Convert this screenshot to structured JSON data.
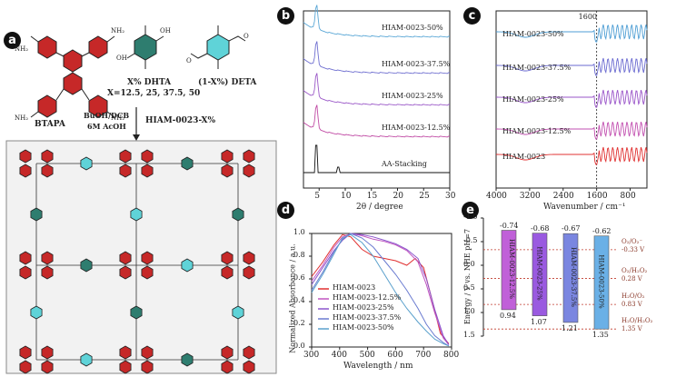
{
  "panel_labels": {
    "a": "a",
    "b": "b",
    "c": "c",
    "d": "d",
    "e": "e"
  },
  "panel_a": {
    "btapa": "BTAPA",
    "dhta": "X% DHTA",
    "deta": "(1-X%) DETA",
    "x_values": "X=12.5, 25, 37.5, 50",
    "cond1": "BuOH/DCB",
    "cond2": "6M AcOH",
    "product": "HIAM-0023-X%",
    "nh2": "NH₂",
    "oh": "OH",
    "o": "O"
  },
  "chart_data": [
    {
      "type": "line",
      "panel": "b",
      "xlabel": "2θ / degree",
      "xlim": [
        2,
        30
      ],
      "xticks": [
        5,
        10,
        15,
        20,
        25,
        30
      ],
      "series": [
        {
          "name": "HIAM-0023-50%",
          "color": "#5aa7d6"
        },
        {
          "name": "HIAM-0023-37.5%",
          "color": "#6f6fd0"
        },
        {
          "name": "HIAM-0023-25%",
          "color": "#9b59c8"
        },
        {
          "name": "HIAM-0023-12.5%",
          "color": "#c04aa4"
        },
        {
          "name": "AA-Stacking",
          "color": "#111111"
        }
      ]
    },
    {
      "type": "line",
      "panel": "c",
      "xlabel": "Wavenumber / cm⁻¹",
      "xlim": [
        4000,
        400
      ],
      "xticks": [
        4000,
        3200,
        2400,
        1600,
        800
      ],
      "annotation": "1600",
      "series": [
        {
          "name": "HIAM-0023-50%",
          "color": "#4e9ed4"
        },
        {
          "name": "HIAM-0023-37.5%",
          "color": "#6a6ad0"
        },
        {
          "name": "HIAM-0023-25%",
          "color": "#9a55c9"
        },
        {
          "name": "HIAM-0023-12.5%",
          "color": "#c24fb0"
        },
        {
          "name": "HIAM-0023",
          "color": "#e03030"
        }
      ]
    },
    {
      "type": "line",
      "panel": "d",
      "xlabel": "Wavelength / nm",
      "ylabel": "Normalized Absorbance / a.u.",
      "xlim": [
        300,
        800
      ],
      "ylim": [
        0,
        1.0
      ],
      "xticks": [
        300,
        400,
        500,
        600,
        700,
        800
      ],
      "yticks": [
        0.0,
        0.2,
        0.4,
        0.6,
        0.8,
        1.0
      ],
      "legend": "bottom-left",
      "series": [
        {
          "name": "HIAM-0023",
          "color": "#e03030",
          "x": [
            300,
            340,
            380,
            410,
            440,
            480,
            520,
            560,
            600,
            640,
            670,
            700,
            730,
            760,
            790
          ],
          "y": [
            0.62,
            0.75,
            0.9,
            0.99,
            0.97,
            0.86,
            0.8,
            0.78,
            0.76,
            0.72,
            0.78,
            0.7,
            0.42,
            0.12,
            0.03
          ]
        },
        {
          "name": "HIAM-0023-12.5%",
          "color": "#c055c0",
          "x": [
            300,
            340,
            380,
            410,
            440,
            480,
            520,
            560,
            600,
            640,
            680,
            710,
            740,
            770,
            790
          ],
          "y": [
            0.58,
            0.72,
            0.88,
            0.97,
            1.0,
            0.98,
            0.95,
            0.93,
            0.9,
            0.85,
            0.75,
            0.55,
            0.3,
            0.08,
            0.02
          ]
        },
        {
          "name": "HIAM-0023-25%",
          "color": "#8a55cc",
          "x": [
            300,
            340,
            380,
            410,
            440,
            480,
            520,
            560,
            600,
            640,
            680,
            710,
            740,
            770,
            790
          ],
          "y": [
            0.55,
            0.7,
            0.85,
            0.94,
            1.0,
            0.99,
            0.97,
            0.94,
            0.91,
            0.86,
            0.78,
            0.6,
            0.33,
            0.1,
            0.02
          ]
        },
        {
          "name": "HIAM-0023-37.5%",
          "color": "#6a7bd0",
          "x": [
            300,
            340,
            380,
            410,
            440,
            480,
            520,
            560,
            600,
            640,
            680,
            710,
            740,
            770,
            790
          ],
          "y": [
            0.5,
            0.66,
            0.84,
            0.95,
            1.0,
            0.96,
            0.88,
            0.76,
            0.64,
            0.5,
            0.34,
            0.2,
            0.1,
            0.04,
            0.01
          ]
        },
        {
          "name": "HIAM-0023-50%",
          "color": "#5aa0cc",
          "x": [
            300,
            340,
            380,
            410,
            440,
            480,
            520,
            560,
            600,
            640,
            680,
            710,
            740,
            770,
            790
          ],
          "y": [
            0.48,
            0.64,
            0.82,
            0.96,
            0.99,
            0.92,
            0.8,
            0.64,
            0.48,
            0.34,
            0.22,
            0.14,
            0.07,
            0.03,
            0.01
          ]
        }
      ]
    },
    {
      "type": "bar",
      "panel": "e",
      "ylabel": "Energy / V vs. NHE pH=7",
      "ylim": [
        -1.0,
        1.5
      ],
      "yticks": [
        -1.0,
        -0.5,
        0.0,
        0.5,
        1.0,
        1.5
      ],
      "categories": [
        "HIAM-0023-12.5%",
        "HIAM-0023-25%",
        "HIAM-0023-37.5%",
        "HIAM-0023-50%"
      ],
      "cb": [
        -0.74,
        -0.68,
        -0.67,
        -0.62
      ],
      "vb": [
        0.94,
        1.07,
        1.21,
        1.35
      ],
      "cb_labels": [
        "-0.74",
        "-0.68",
        "-0.67",
        "-0.62"
      ],
      "vb_labels": [
        "0.94",
        "1.07",
        "1.21",
        "1.35"
      ],
      "colors": [
        "#c060d8",
        "#9a5ae0",
        "#7a86e0",
        "#6ab0e6"
      ],
      "reference_lines": [
        {
          "label": "O₂/O₂⁻",
          "value_label": "-0.33 V",
          "value": -0.33
        },
        {
          "label": "O₂/H₂O₂",
          "value_label": "0.28 V",
          "value": 0.28
        },
        {
          "label": "H₂O/O₂",
          "value_label": "0.83 V",
          "value": 0.83
        },
        {
          "label": "H₂O/H₂O₂",
          "value_label": "1.35 V",
          "value": 1.35
        }
      ]
    }
  ]
}
